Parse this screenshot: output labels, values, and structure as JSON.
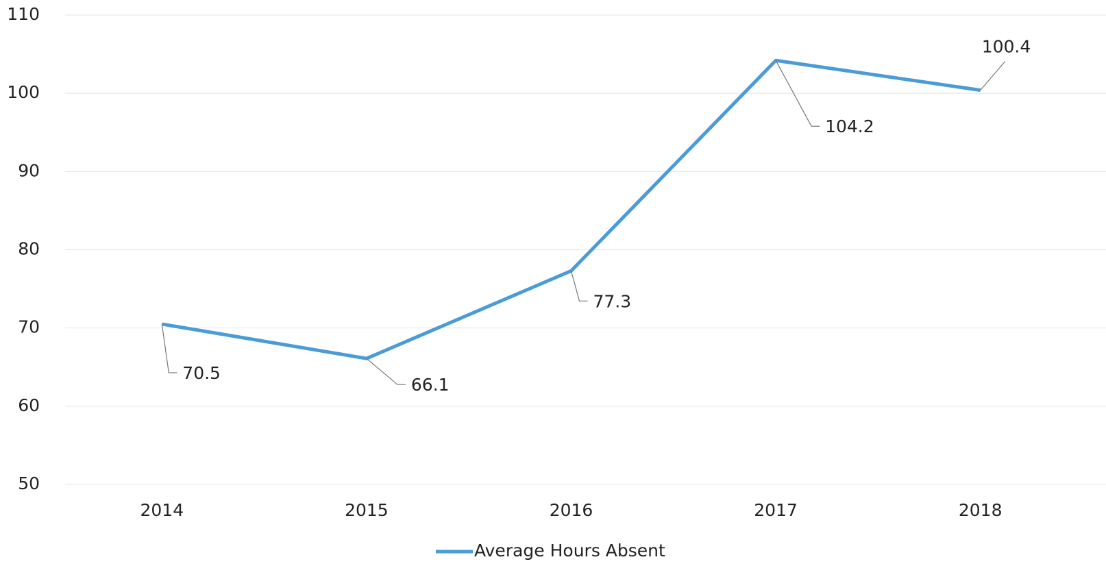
{
  "chart_data": {
    "type": "line",
    "categories": [
      "2014",
      "2015",
      "2016",
      "2017",
      "2018"
    ],
    "series": [
      {
        "name": "Average Hours Absent",
        "color": "#4a9bd8",
        "values": [
          70.5,
          66.1,
          77.3,
          104.2,
          100.4
        ]
      }
    ],
    "ylim": [
      50,
      110
    ],
    "yticks": [
      50,
      60,
      70,
      80,
      90,
      100,
      110
    ],
    "grid": true,
    "legend": "bottom"
  }
}
